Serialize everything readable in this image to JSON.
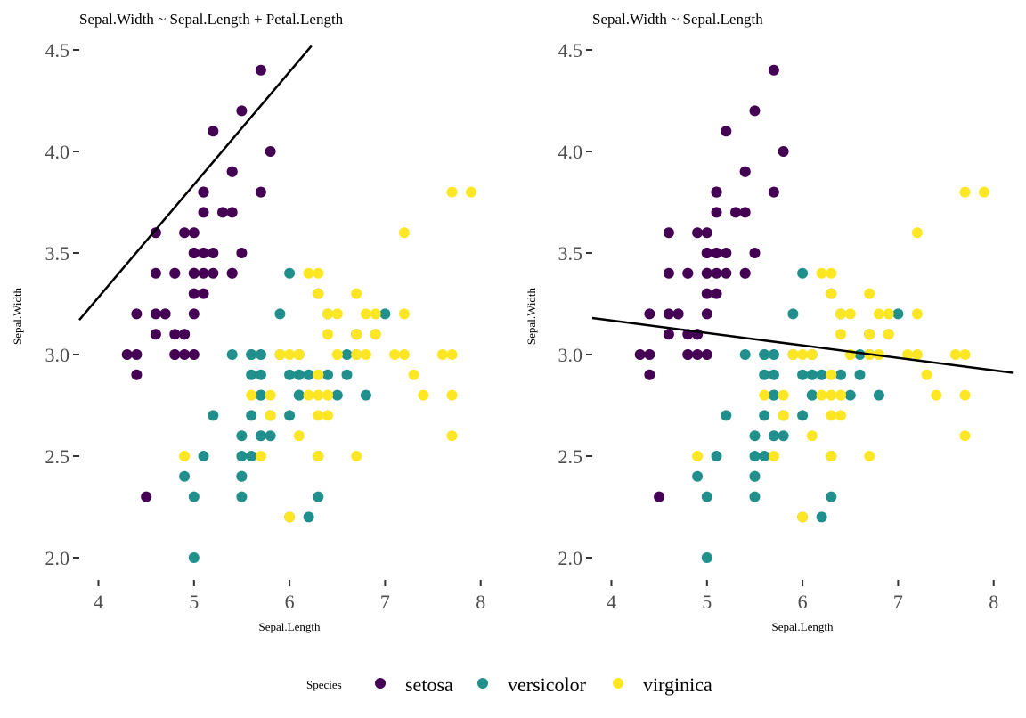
{
  "chart_data": [
    {
      "type": "scatter",
      "title": "Sepal.Width ~ Sepal.Length + Petal.Length",
      "xlabel": "Sepal.Length",
      "ylabel": "Sepal.Width",
      "xlim": [
        3.8,
        8.2
      ],
      "ylim": [
        1.9,
        4.55
      ],
      "xticks": [
        "4",
        "5",
        "6",
        "7",
        "8"
      ],
      "yticks": [
        "2.0",
        "2.5",
        "3.0",
        "3.5",
        "4.0",
        "4.5"
      ],
      "grid": false,
      "fit_line": {
        "x": [
          3.8,
          6.23
        ],
        "y": [
          3.17,
          4.52
        ]
      },
      "series_ref": "iris"
    },
    {
      "type": "scatter",
      "title": "Sepal.Width ~ Sepal.Length",
      "xlabel": "Sepal.Length",
      "ylabel": "Sepal.Width",
      "xlim": [
        3.8,
        8.2
      ],
      "ylim": [
        1.9,
        4.55
      ],
      "xticks": [
        "4",
        "5",
        "6",
        "7",
        "8"
      ],
      "yticks": [
        "2.0",
        "2.5",
        "3.0",
        "3.5",
        "4.0",
        "4.5"
      ],
      "grid": false,
      "fit_line": {
        "x": [
          3.8,
          8.2
        ],
        "y": [
          3.18,
          2.91
        ]
      },
      "series_ref": "iris"
    }
  ],
  "iris": [
    {
      "name": "setosa",
      "color": "#440154",
      "points": [
        [
          5.1,
          3.5
        ],
        [
          4.9,
          3.0
        ],
        [
          4.7,
          3.2
        ],
        [
          4.6,
          3.1
        ],
        [
          5.0,
          3.6
        ],
        [
          5.4,
          3.9
        ],
        [
          4.6,
          3.4
        ],
        [
          5.0,
          3.4
        ],
        [
          4.4,
          2.9
        ],
        [
          4.9,
          3.1
        ],
        [
          5.4,
          3.7
        ],
        [
          4.8,
          3.4
        ],
        [
          4.8,
          3.0
        ],
        [
          4.3,
          3.0
        ],
        [
          5.8,
          4.0
        ],
        [
          5.7,
          4.4
        ],
        [
          5.4,
          3.9
        ],
        [
          5.1,
          3.5
        ],
        [
          5.7,
          3.8
        ],
        [
          5.1,
          3.8
        ],
        [
          5.4,
          3.4
        ],
        [
          5.1,
          3.7
        ],
        [
          4.6,
          3.6
        ],
        [
          5.1,
          3.3
        ],
        [
          4.8,
          3.4
        ],
        [
          5.0,
          3.0
        ],
        [
          5.0,
          3.4
        ],
        [
          5.2,
          3.5
        ],
        [
          5.2,
          3.4
        ],
        [
          4.7,
          3.2
        ],
        [
          4.8,
          3.1
        ],
        [
          5.4,
          3.4
        ],
        [
          5.2,
          4.1
        ],
        [
          5.5,
          4.2
        ],
        [
          4.9,
          3.1
        ],
        [
          5.0,
          3.2
        ],
        [
          5.5,
          3.5
        ],
        [
          4.9,
          3.6
        ],
        [
          4.4,
          3.0
        ],
        [
          5.1,
          3.4
        ],
        [
          5.0,
          3.5
        ],
        [
          4.5,
          2.3
        ],
        [
          4.4,
          3.2
        ],
        [
          5.0,
          3.5
        ],
        [
          5.1,
          3.8
        ],
        [
          4.8,
          3.0
        ],
        [
          5.1,
          3.8
        ],
        [
          4.6,
          3.2
        ],
        [
          5.3,
          3.7
        ],
        [
          5.0,
          3.3
        ]
      ]
    },
    {
      "name": "versicolor",
      "color": "#21908C",
      "points": [
        [
          7.0,
          3.2
        ],
        [
          6.4,
          3.2
        ],
        [
          6.9,
          3.1
        ],
        [
          5.5,
          2.3
        ],
        [
          6.5,
          2.8
        ],
        [
          5.7,
          2.8
        ],
        [
          6.3,
          3.3
        ],
        [
          4.9,
          2.4
        ],
        [
          6.6,
          2.9
        ],
        [
          5.2,
          2.7
        ],
        [
          5.0,
          2.0
        ],
        [
          5.9,
          3.0
        ],
        [
          6.0,
          2.2
        ],
        [
          6.1,
          2.9
        ],
        [
          5.6,
          2.9
        ],
        [
          6.7,
          3.1
        ],
        [
          5.6,
          3.0
        ],
        [
          5.8,
          2.7
        ],
        [
          6.2,
          2.2
        ],
        [
          5.6,
          2.5
        ],
        [
          5.9,
          3.2
        ],
        [
          6.1,
          2.8
        ],
        [
          6.3,
          2.5
        ],
        [
          6.1,
          2.8
        ],
        [
          6.4,
          2.9
        ],
        [
          6.6,
          3.0
        ],
        [
          6.8,
          2.8
        ],
        [
          6.7,
          3.0
        ],
        [
          6.0,
          2.9
        ],
        [
          5.7,
          2.6
        ],
        [
          5.5,
          2.4
        ],
        [
          5.5,
          2.4
        ],
        [
          5.8,
          2.7
        ],
        [
          6.0,
          2.7
        ],
        [
          5.4,
          3.0
        ],
        [
          6.0,
          3.4
        ],
        [
          6.7,
          3.1
        ],
        [
          6.3,
          2.3
        ],
        [
          5.6,
          3.0
        ],
        [
          5.5,
          2.5
        ],
        [
          5.5,
          2.6
        ],
        [
          6.1,
          3.0
        ],
        [
          5.8,
          2.6
        ],
        [
          5.0,
          2.3
        ],
        [
          5.6,
          2.7
        ],
        [
          5.7,
          3.0
        ],
        [
          5.7,
          2.9
        ],
        [
          6.2,
          2.9
        ],
        [
          5.1,
          2.5
        ],
        [
          5.7,
          2.8
        ]
      ]
    },
    {
      "name": "virginica",
      "color": "#FDE725",
      "points": [
        [
          6.3,
          3.3
        ],
        [
          5.8,
          2.7
        ],
        [
          7.1,
          3.0
        ],
        [
          6.3,
          2.9
        ],
        [
          6.5,
          3.0
        ],
        [
          7.6,
          3.0
        ],
        [
          4.9,
          2.5
        ],
        [
          7.3,
          2.9
        ],
        [
          6.7,
          2.5
        ],
        [
          7.2,
          3.6
        ],
        [
          6.5,
          3.2
        ],
        [
          6.4,
          2.7
        ],
        [
          6.8,
          3.0
        ],
        [
          5.7,
          2.5
        ],
        [
          5.8,
          2.8
        ],
        [
          6.4,
          3.2
        ],
        [
          6.5,
          3.0
        ],
        [
          7.7,
          3.8
        ],
        [
          7.7,
          2.6
        ],
        [
          6.0,
          2.2
        ],
        [
          6.9,
          3.2
        ],
        [
          5.6,
          2.8
        ],
        [
          7.7,
          2.8
        ],
        [
          6.3,
          2.7
        ],
        [
          6.7,
          3.3
        ],
        [
          7.2,
          3.2
        ],
        [
          6.2,
          2.8
        ],
        [
          6.1,
          3.0
        ],
        [
          6.4,
          2.8
        ],
        [
          7.2,
          3.0
        ],
        [
          7.4,
          2.8
        ],
        [
          7.9,
          3.8
        ],
        [
          6.4,
          2.8
        ],
        [
          6.3,
          2.8
        ],
        [
          6.1,
          2.6
        ],
        [
          7.7,
          3.0
        ],
        [
          6.3,
          3.4
        ],
        [
          6.4,
          3.1
        ],
        [
          6.0,
          3.0
        ],
        [
          6.9,
          3.1
        ],
        [
          6.7,
          3.1
        ],
        [
          6.9,
          3.1
        ],
        [
          5.8,
          2.7
        ],
        [
          6.8,
          3.2
        ],
        [
          6.7,
          3.3
        ],
        [
          6.7,
          3.0
        ],
        [
          6.3,
          2.5
        ],
        [
          6.5,
          3.0
        ],
        [
          6.2,
          3.4
        ],
        [
          5.9,
          3.0
        ]
      ]
    }
  ],
  "legend": {
    "title": "Species",
    "placement": "bottom",
    "items": [
      "setosa",
      "versicolor",
      "virginica"
    ]
  }
}
